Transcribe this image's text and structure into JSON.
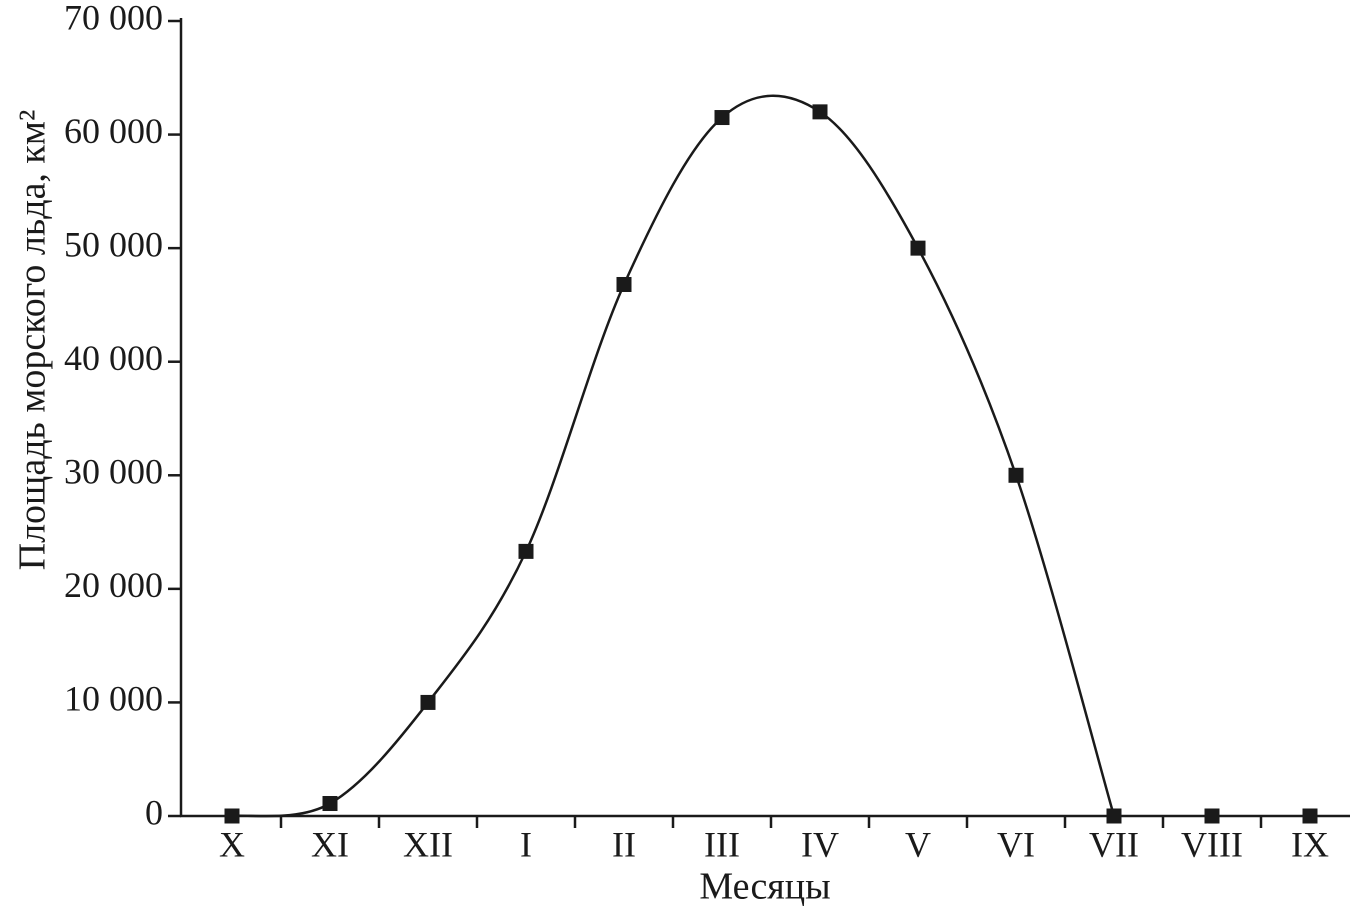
{
  "chart_data": {
    "type": "line",
    "x_label": "Месяцы",
    "y_label": "Площадь морского льда, км²",
    "categories": [
      "X",
      "XI",
      "XII",
      "I",
      "II",
      "III",
      "IV",
      "V",
      "VI",
      "VII",
      "VIII",
      "IX"
    ],
    "values": [
      0,
      1100,
      10000,
      23300,
      46800,
      61500,
      62000,
      50000,
      30000,
      0,
      0,
      0
    ],
    "color": "#1a1a1a",
    "ylim": [
      0,
      70000
    ],
    "yticks": [
      0,
      {
        "value": 10000,
        "label": "10 000"
      },
      {
        "value": 20000,
        "label": "20 000"
      },
      {
        "value": 30000,
        "label": "30 000"
      },
      {
        "value": 40000,
        "label": "40 000"
      },
      {
        "value": 50000,
        "label": "50 000"
      },
      {
        "value": 60000,
        "label": "60 000"
      },
      {
        "value": 70000,
        "label": "70 000"
      }
    ]
  }
}
